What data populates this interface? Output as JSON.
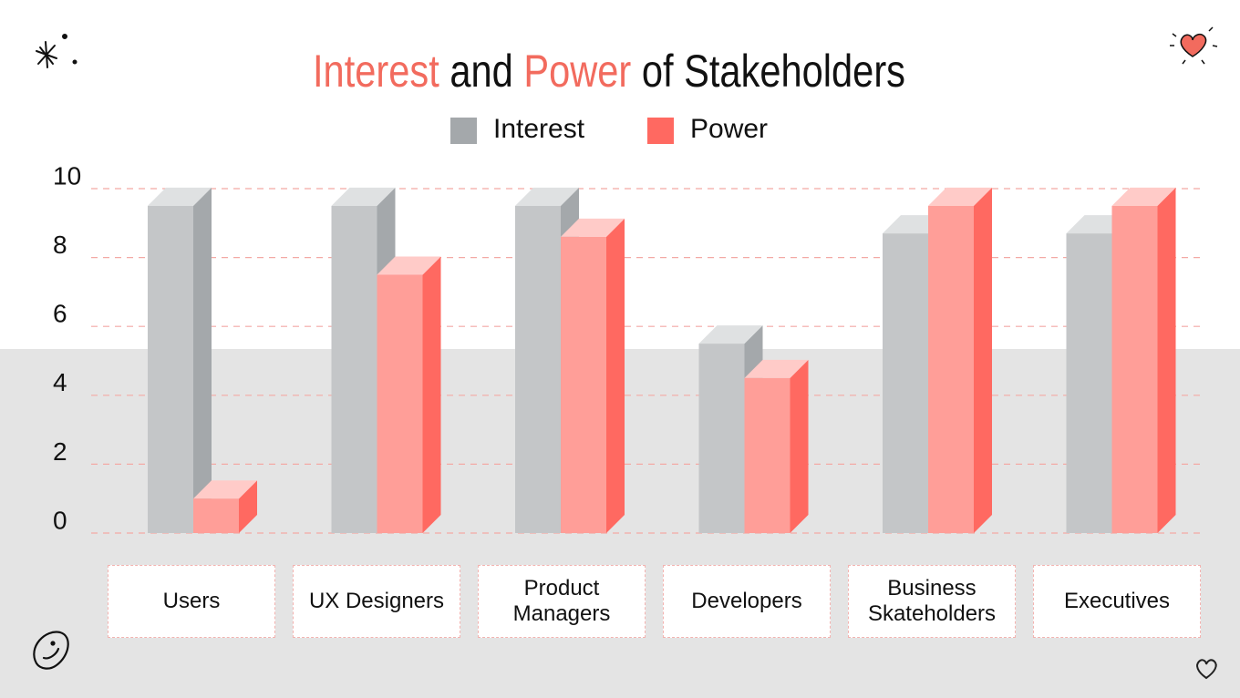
{
  "chart_data": {
    "type": "bar3d",
    "title": "Interest and Power of Stakeholders",
    "title_color": "#111111",
    "highlight_color": "#f26b5e",
    "categories": [
      "Users",
      "UX Designers",
      "Product Managers",
      "Developers",
      "Business Skateholders",
      "Executives"
    ],
    "series": [
      {
        "name": "Interest",
        "color": "#a4a8ab",
        "values": [
          9.5,
          9.5,
          9.5,
          5.5,
          8.7,
          8.7
        ]
      },
      {
        "name": "Power",
        "color": "#ff6961",
        "values": [
          1,
          7.5,
          8.6,
          4.5,
          9.5,
          9.5
        ]
      }
    ],
    "ylim": [
      0,
      10
    ],
    "yticks": [
      0,
      2,
      4,
      6,
      8,
      10
    ],
    "grid": true,
    "legend": "top"
  }
}
